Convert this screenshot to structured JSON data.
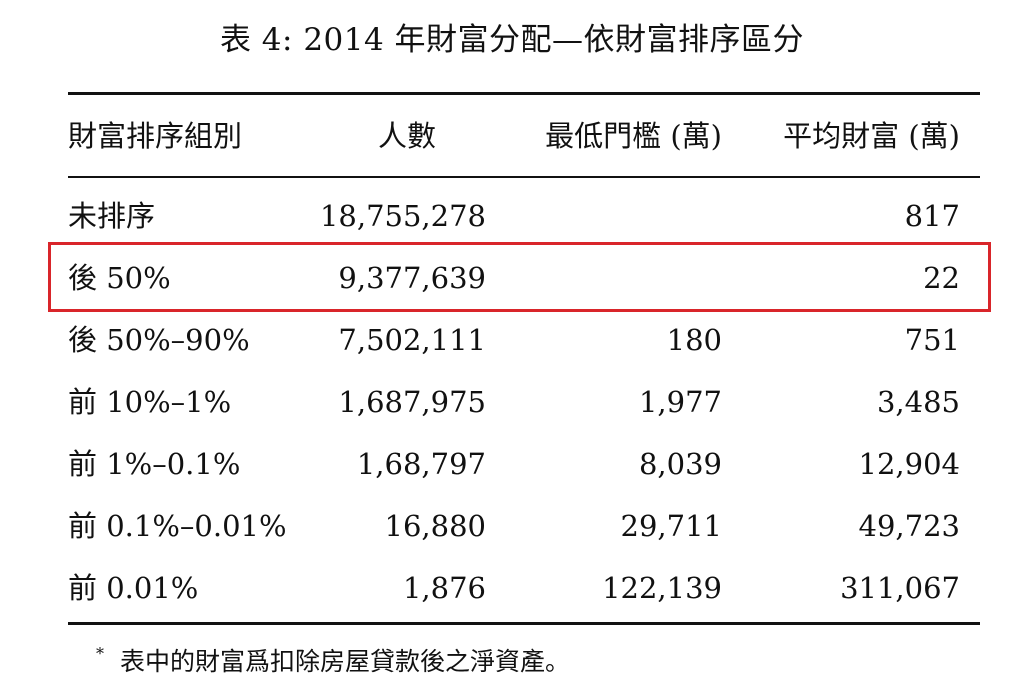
{
  "caption": "表 4: 2014 年財富分配—依財富排序區分",
  "table": {
    "headers": [
      "財富排序組別",
      "人數",
      "最低門檻 (萬)",
      "平均財富 (萬)"
    ],
    "rows": [
      {
        "group": "未排序",
        "count": "18,755,278",
        "threshold": "",
        "avg": "817"
      },
      {
        "group": "後 50%",
        "count": "9,377,639",
        "threshold": "",
        "avg": "22"
      },
      {
        "group": "後 50%–90%",
        "count": "7,502,111",
        "threshold": "180",
        "avg": "751"
      },
      {
        "group": "前 10%–1%",
        "count": "1,687,975",
        "threshold": "1,977",
        "avg": "3,485"
      },
      {
        "group": "前 1%–0.1%",
        "count": "1,68,797",
        "threshold": "8,039",
        "avg": "12,904"
      },
      {
        "group": "前 0.1%–0.01%",
        "count": "16,880",
        "threshold": "29,711",
        "avg": "49,723"
      },
      {
        "group": "前 0.01%",
        "count": "1,876",
        "threshold": "122,139",
        "avg": "311,067"
      }
    ]
  },
  "footnote": {
    "mark": "*",
    "text": "表中的財富爲扣除房屋貸款後之淨資產。"
  },
  "highlight": {
    "row": "後 50%",
    "color": "#d9252a"
  }
}
